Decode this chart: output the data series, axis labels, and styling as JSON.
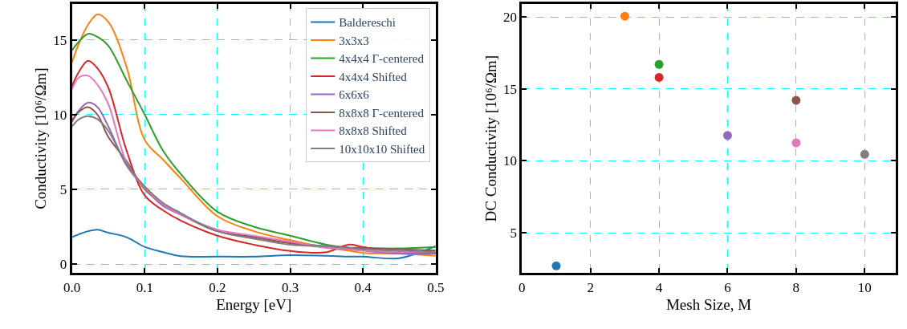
{
  "chart_data": [
    {
      "type": "line",
      "xlabel": "Energy [eV]",
      "ylabel": "Conductivity [10⁶/Ωm]",
      "x": [
        0,
        0.01,
        0.022,
        0.035,
        0.05,
        0.075,
        0.1,
        0.125,
        0.15,
        0.2,
        0.25,
        0.3,
        0.35,
        0.38,
        0.4,
        0.45,
        0.5
      ],
      "series": [
        {
          "name": "Baldereschi",
          "color": "#1f77b4",
          "values": [
            1.8,
            2.0,
            2.2,
            2.3,
            2.1,
            1.8,
            1.15,
            0.8,
            0.53,
            0.5,
            0.5,
            0.6,
            0.55,
            0.5,
            0.5,
            0.4,
            1.2
          ]
        },
        {
          "name": "3x3x3",
          "color": "#ff7f0e",
          "values": [
            13.5,
            14.8,
            16.0,
            16.7,
            16.2,
            13.2,
            8.3,
            7.0,
            5.7,
            3.2,
            2.2,
            1.6,
            1.1,
            0.9,
            0.75,
            0.7,
            0.55
          ]
        },
        {
          "name": "4x4x4 Γ-centered",
          "color": "#2ca02c",
          "values": [
            14.3,
            14.9,
            15.4,
            15.2,
            14.6,
            12.3,
            10.0,
            7.6,
            6.0,
            3.5,
            2.5,
            1.9,
            1.3,
            1.1,
            1.05,
            1.05,
            1.15
          ]
        },
        {
          "name": "4x4x4 Shifted",
          "color": "#d62728",
          "values": [
            11.9,
            12.9,
            13.6,
            13.1,
            11.8,
            7.6,
            4.6,
            3.6,
            2.9,
            1.9,
            1.3,
            0.88,
            0.8,
            1.3,
            1.15,
            0.8,
            0.7
          ]
        },
        {
          "name": "6x6x6",
          "color": "#9467bd",
          "values": [
            9.5,
            10.3,
            10.8,
            10.5,
            9.2,
            6.6,
            5.1,
            3.9,
            3.3,
            2.2,
            1.8,
            1.4,
            1.1,
            1.0,
            0.9,
            0.7,
            0.7
          ]
        },
        {
          "name": "8x8x8 Γ-centered",
          "color": "#8c564b",
          "values": [
            9.6,
            10.2,
            10.5,
            10.0,
            8.5,
            6.9,
            5.0,
            4.0,
            3.3,
            2.2,
            1.8,
            1.4,
            1.2,
            1.1,
            1.1,
            1.0,
            0.9
          ]
        },
        {
          "name": "8x8x8 Shifted",
          "color": "#e377c2",
          "values": [
            11.7,
            12.5,
            12.6,
            12.0,
            10.7,
            6.8,
            5.1,
            4.0,
            3.3,
            2.3,
            1.9,
            1.5,
            1.1,
            1.0,
            0.9,
            0.8,
            0.8
          ]
        },
        {
          "name": "10x10x10 Shifted",
          "color": "#7f7f7f",
          "values": [
            9.2,
            9.7,
            9.9,
            9.7,
            8.9,
            6.7,
            5.2,
            4.1,
            3.4,
            2.2,
            1.7,
            1.3,
            1.2,
            1.1,
            1.0,
            0.9,
            0.8
          ]
        }
      ],
      "xlim": [
        0,
        0.5
      ],
      "xticks": [
        {
          "value": 0,
          "label": "0.0"
        },
        0.1,
        0.2,
        0.3,
        0.4,
        0.5
      ],
      "ylim": [
        -0.6,
        17.4
      ],
      "yticks": [
        0,
        5,
        10,
        15
      ],
      "grid": true,
      "legend": "top right",
      "line_style": "solid",
      "marker": "none"
    },
    {
      "type": "scatter",
      "xlabel": "Mesh Size, M",
      "ylabel": "DC Conductivity [10⁶/Ωm]",
      "x": [
        1,
        3,
        4,
        4,
        6,
        8,
        8,
        10
      ],
      "values": [
        2.7,
        20.05,
        16.7,
        15.8,
        11.76,
        14.2,
        11.25,
        10.45
      ],
      "colors": [
        "#1f77b4",
        "#ff7f0e",
        "#2ca02c",
        "#d62728",
        "#9467bd",
        "#8c564b",
        "#e377c2",
        "#7f7f7f"
      ],
      "xlim": [
        0,
        10.9
      ],
      "xticks": [
        0,
        2,
        4,
        6,
        8,
        10
      ],
      "ylim": [
        2.2,
        20.9
      ],
      "yticks": [
        5,
        10,
        15,
        20
      ],
      "grid": true,
      "marker": "circle"
    }
  ]
}
